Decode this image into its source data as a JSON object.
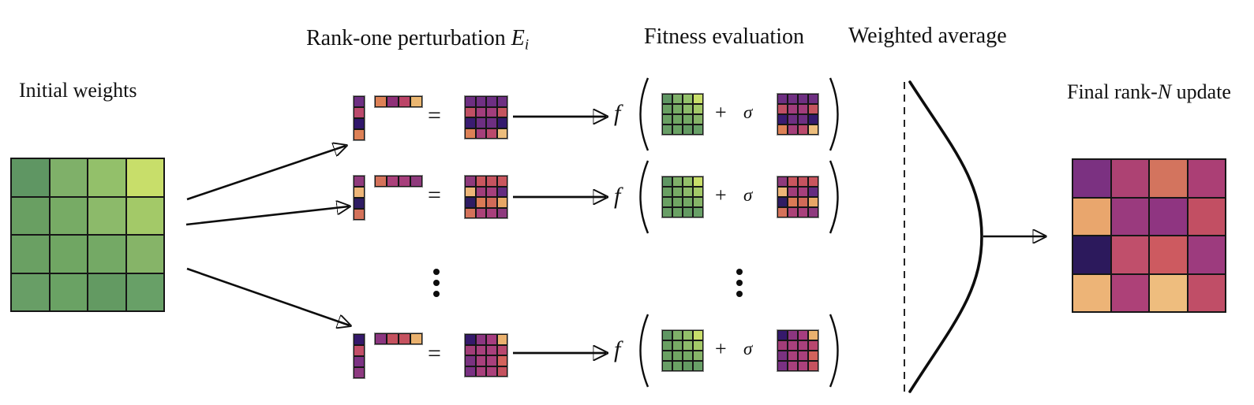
{
  "labels": {
    "initial_weights": "Initial weights",
    "rank_one_prefix": "Rank-one perturbation ",
    "rank_one_symbol": "E",
    "rank_one_subscript": "i",
    "fitness_evaluation": "Fitness evaluation",
    "weighted_average": "Weighted average",
    "final_prefix": "Final rank-",
    "final_symbol": "N",
    "final_suffix": " update"
  },
  "math": {
    "equals": "=",
    "plus": "+",
    "sigma": "σ",
    "f": "f"
  },
  "colors": {
    "stroke": "#0d0d0d",
    "background": "#ffffff"
  },
  "matrices": {
    "initial_weights": [
      [
        "#5f9663",
        "#7fb069",
        "#93c06a",
        "#c8de6a"
      ],
      [
        "#699f62",
        "#77ab65",
        "#8cba6a",
        "#a3c968"
      ],
      [
        "#6aa063",
        "#70a663",
        "#74a965",
        "#86b468"
      ],
      [
        "#689e66",
        "#6aa264",
        "#639a62",
        "#68a067"
      ]
    ],
    "perturbations": [
      {
        "col": [
          "#6e2f82",
          "#bb4a6c",
          "#31176b",
          "#dd8156"
        ],
        "row": [
          "#dd8156",
          "#8f3078",
          "#bb4467",
          "#eab671"
        ],
        "product": [
          [
            "#6e2f82",
            "#713083",
            "#6e2f82",
            "#6e2f82"
          ],
          [
            "#c05064",
            "#a23d7c",
            "#a23d7c",
            "#c5555f"
          ],
          [
            "#3a1c71",
            "#6e2f82",
            "#6e2f82",
            "#341a6e"
          ],
          [
            "#dd8156",
            "#a53f7a",
            "#bb4a6c",
            "#ecbd7c"
          ]
        ]
      },
      {
        "col": [
          "#8f3a7c",
          "#edb578",
          "#2f1c63",
          "#d4725a"
        ],
        "row": [
          "#d4725a",
          "#ab417b",
          "#a73f7c",
          "#8f3a7c"
        ],
        "product": [
          [
            "#8f3a7c",
            "#c9565e",
            "#c5535f",
            "#c9565e"
          ],
          [
            "#edb578",
            "#a03d7a",
            "#a6407c",
            "#642c80"
          ],
          [
            "#2f1c63",
            "#d97a55",
            "#d06a58",
            "#e8a766"
          ],
          [
            "#d4725a",
            "#ab4278",
            "#a8407c",
            "#8e3a7e"
          ]
        ]
      },
      {
        "col": [
          "#35196b",
          "#c24f68",
          "#7c3283",
          "#8d3a80"
        ],
        "row": [
          "#8c3680",
          "#c5525f",
          "#c5525f",
          "#eab16e"
        ],
        "product": [
          [
            "#35196b",
            "#8c3680",
            "#a63d7f",
            "#eab16e"
          ],
          [
            "#a23d78",
            "#a8407c",
            "#a8407c",
            "#b8476e"
          ],
          [
            "#7a3280",
            "#a8407c",
            "#a8407c",
            "#d2635c"
          ],
          [
            "#7a3183",
            "#a8407c",
            "#ab417b",
            "#c5525f"
          ]
        ]
      }
    ],
    "final_update": [
      [
        "#7b3181",
        "#ad4273",
        "#d3745e",
        "#ab3f75"
      ],
      [
        "#e9a66d",
        "#9a3a7e",
        "#8f3581",
        "#c24f63"
      ],
      [
        "#2c195c",
        "#c04f6b",
        "#cd5a60",
        "#9d3b7e"
      ],
      [
        "#edb477",
        "#ad4178",
        "#eebd7e",
        "#c04e67"
      ]
    ]
  }
}
